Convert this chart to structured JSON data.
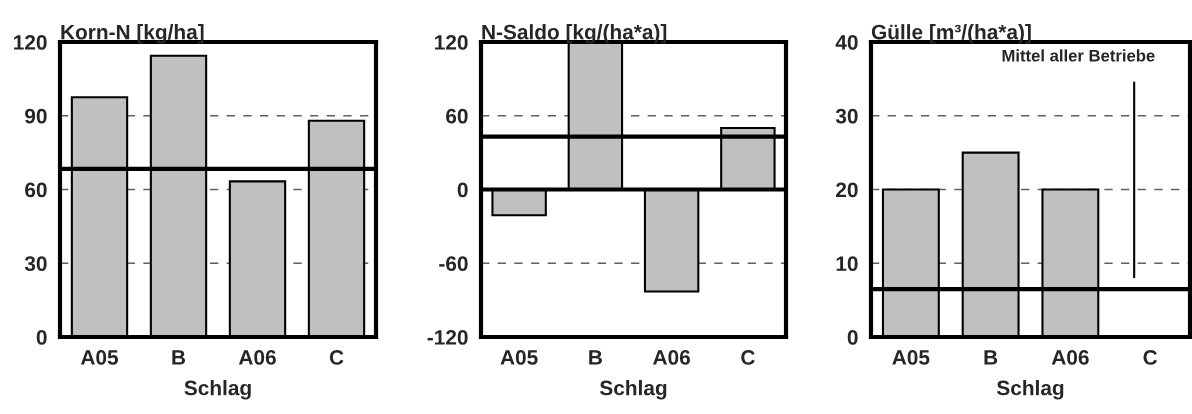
{
  "chart_data": [
    {
      "type": "bar",
      "title": "Korn-N [kg/ha]",
      "xlabel": "Schlag",
      "categories": [
        "A05",
        "B",
        "A06",
        "C"
      ],
      "values": [
        97.5,
        114.4,
        63.3,
        88
      ],
      "color": "#c0c0c0",
      "ylim": [
        0,
        120
      ],
      "yticks": [
        0,
        30,
        60,
        90,
        120
      ],
      "grid": "y",
      "legend": false,
      "ref_lines": [
        {
          "axis": "y",
          "value": 68.4,
          "color": "#000000"
        }
      ]
    },
    {
      "type": "bar",
      "title": "N-Saldo [kg/(ha*a)]",
      "xlabel": "Schlag",
      "categories": [
        "A05",
        "B",
        "A06",
        "C"
      ],
      "values": [
        -21,
        120,
        -83,
        50
      ],
      "color": "#c0c0c0",
      "ylim": [
        -120,
        120
      ],
      "yticks": [
        -120,
        -60,
        0,
        60,
        120
      ],
      "grid": "y",
      "legend": false,
      "ref_lines": [
        {
          "axis": "y",
          "value": 0,
          "color": "#000000"
        },
        {
          "axis": "y",
          "value": 43,
          "color": "#000000"
        }
      ]
    },
    {
      "type": "bar",
      "title": "Gülle [m³/(ha*a)]",
      "xlabel": "Schlag",
      "categories": [
        "A05",
        "B",
        "A06",
        "C"
      ],
      "values": [
        20,
        25,
        20,
        null
      ],
      "color": "#c0c0c0",
      "ylim": [
        0,
        40
      ],
      "yticks": [
        0,
        10,
        20,
        30,
        40
      ],
      "grid": "y",
      "legend": false,
      "ref_lines": [
        {
          "axis": "y",
          "value": 6.5,
          "color": "#000000",
          "label": "Mittel aller Betriebe"
        }
      ]
    }
  ]
}
